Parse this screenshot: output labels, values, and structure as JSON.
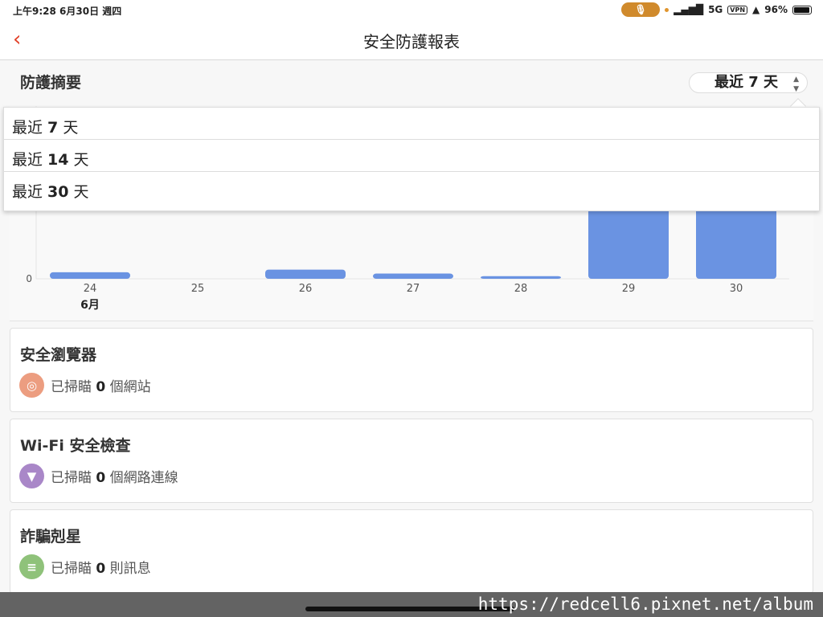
{
  "status": {
    "time": "上午9:28  6月30日 週四",
    "network": "5G",
    "vpn": "VPN",
    "battery": "96%",
    "battery_level": 96
  },
  "nav": {
    "title": "安全防護報表",
    "back_icon": "chevron-left-icon"
  },
  "summary": {
    "title": "防護摘要",
    "selected_range": "最近 7 天",
    "options": [
      {
        "pre": "最近 ",
        "num": "7",
        "post": " 天"
      },
      {
        "pre": "最近 ",
        "num": "14",
        "post": " 天"
      },
      {
        "pre": "最近 ",
        "num": "30",
        "post": " 天"
      }
    ]
  },
  "chart_data": {
    "type": "bar",
    "categories": [
      "24",
      "25",
      "26",
      "27",
      "28",
      "29",
      "30"
    ],
    "month_label": "6月",
    "values": [
      0.5,
      0,
      0.7,
      0.4,
      0.2,
      12,
      12
    ],
    "ytick_labels": [
      "0"
    ],
    "bar_color": "#6a93e2",
    "ylim": [
      0,
      12
    ]
  },
  "cards": [
    {
      "title": "安全瀏覽器",
      "pre": "已掃瞄 ",
      "count": "0",
      "post": " 個網站",
      "icon": "search-icon",
      "color": "#ec9d80"
    },
    {
      "title": "Wi-Fi 安全檢查",
      "pre": "已掃瞄 ",
      "count": "0",
      "post": " 個網路連線",
      "icon": "wifi-icon",
      "color": "#a987c8"
    },
    {
      "title": "詐騙剋星",
      "pre": "已掃瞄 ",
      "count": "0",
      "post": " 則訊息",
      "icon": "message-icon",
      "color": "#8fc27a"
    }
  ],
  "watermark": "https://redcell6.pixnet.net/album"
}
